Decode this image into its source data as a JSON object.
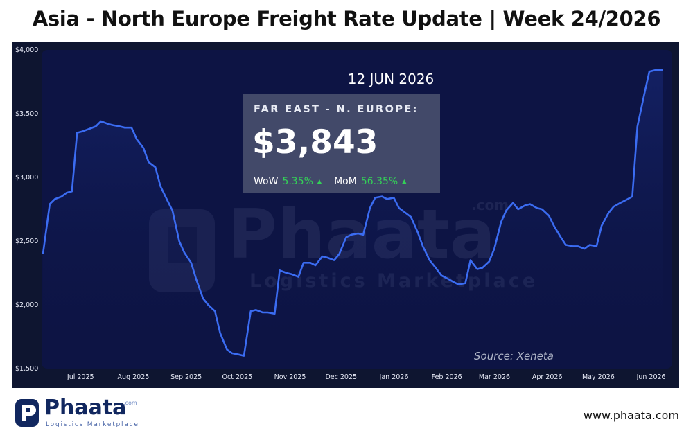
{
  "title": "Asia - North Europe Freight Rate Update | Week 24/2026",
  "date_label": "12 JUN 2026",
  "card": {
    "route": "FAR EAST - N. EUROPE:",
    "price": "$3,843",
    "wow_label": "WoW",
    "wow_value": "5.35%",
    "mom_label": "MoM",
    "mom_value": "56.35%",
    "trend_icon": "triangle-up-icon"
  },
  "source": "Source: Xeneta",
  "watermark": {
    "name": "Phaata",
    "com": ".com",
    "tagline": "Logistics Marketplace"
  },
  "footer": {
    "logo_name": "Phaata",
    "logo_com": ".com",
    "logo_tagline": "Logistics Marketplace",
    "website": "www.phaata.com"
  },
  "colors": {
    "line": "#3b6cf2",
    "plot_bg": "#0d1444",
    "panel_bg": "#0e1530",
    "positive": "#34d058"
  },
  "chart_data": {
    "type": "line",
    "title": "",
    "xlabel": "",
    "ylabel": "",
    "ylim": [
      1500,
      4000
    ],
    "yticks": [
      1500,
      2000,
      2500,
      3000,
      3500,
      4000
    ],
    "ytick_labels": [
      "$1,500",
      "$2,000",
      "$2,500",
      "$3,000",
      "$3,500",
      "$4,000"
    ],
    "xtick_labels": [
      "Jul 2025",
      "Aug 2025",
      "Sep 2025",
      "Oct 2025",
      "Nov 2025",
      "Dec 2025",
      "Jan 2026",
      "Feb 2026",
      "Mar 2026",
      "Apr 2026",
      "May 2026",
      "Jun 2026"
    ],
    "xtick_dates": [
      "2025-07-01",
      "2025-08-01",
      "2025-09-01",
      "2025-10-01",
      "2025-11-01",
      "2025-12-01",
      "2026-01-01",
      "2026-02-01",
      "2026-03-01",
      "2026-04-01",
      "2026-05-01",
      "2026-06-01"
    ],
    "grid": false,
    "legend": "none",
    "series": [
      {
        "x": [
          "2025-06-13",
          "2025-06-17",
          "2025-06-20",
          "2025-06-24",
          "2025-06-27",
          "2025-06-30",
          "2025-07-03",
          "2025-07-06",
          "2025-07-10",
          "2025-07-14",
          "2025-07-17",
          "2025-07-21",
          "2025-07-24",
          "2025-07-28",
          "2025-07-31",
          "2025-08-04",
          "2025-08-07",
          "2025-08-11",
          "2025-08-14",
          "2025-08-18",
          "2025-08-21",
          "2025-08-25",
          "2025-08-28",
          "2025-09-01",
          "2025-09-04",
          "2025-09-08",
          "2025-09-11",
          "2025-09-15",
          "2025-09-18",
          "2025-09-22",
          "2025-09-25",
          "2025-09-29",
          "2025-10-02",
          "2025-10-06",
          "2025-10-09",
          "2025-10-13",
          "2025-10-16",
          "2025-10-20",
          "2025-10-23",
          "2025-10-27",
          "2025-10-30",
          "2025-11-03",
          "2025-11-06",
          "2025-11-10",
          "2025-11-13",
          "2025-11-17",
          "2025-11-20",
          "2025-11-24",
          "2025-11-27",
          "2025-12-01",
          "2025-12-04",
          "2025-12-08",
          "2025-12-11",
          "2025-12-15",
          "2025-12-18",
          "2025-12-22",
          "2025-12-25",
          "2025-12-29",
          "2026-01-01",
          "2026-01-05",
          "2026-01-08",
          "2026-01-12",
          "2026-01-15",
          "2026-01-19",
          "2026-01-22",
          "2026-01-26",
          "2026-01-29",
          "2026-02-02",
          "2026-02-05",
          "2026-02-09",
          "2026-02-12",
          "2026-02-16",
          "2026-02-19",
          "2026-02-23",
          "2026-02-26",
          "2026-03-02",
          "2026-03-05",
          "2026-03-09",
          "2026-03-12",
          "2026-03-16",
          "2026-03-19",
          "2026-03-23",
          "2026-03-26",
          "2026-03-30",
          "2026-04-02",
          "2026-04-06",
          "2026-04-09",
          "2026-04-13",
          "2026-04-16",
          "2026-04-20",
          "2026-04-23",
          "2026-04-27",
          "2026-04-30",
          "2026-05-04",
          "2026-05-07",
          "2026-05-11",
          "2026-05-14",
          "2026-05-18",
          "2026-05-21",
          "2026-05-25",
          "2026-05-28",
          "2026-06-01",
          "2026-06-04",
          "2026-06-08",
          "2026-06-12"
        ],
        "values": [
          2400,
          2790,
          2830,
          2850,
          2880,
          2890,
          3350,
          3360,
          3380,
          3400,
          3440,
          3420,
          3410,
          3400,
          3390,
          3390,
          3300,
          3230,
          3120,
          3080,
          2930,
          2820,
          2740,
          2500,
          2410,
          2330,
          2200,
          2050,
          2000,
          1950,
          1780,
          1650,
          1620,
          1610,
          1600,
          1950,
          1960,
          1940,
          1940,
          1930,
          2270,
          2250,
          2240,
          2220,
          2330,
          2330,
          2310,
          2380,
          2370,
          2350,
          2400,
          2530,
          2550,
          2560,
          2550,
          2760,
          2840,
          2850,
          2830,
          2840,
          2760,
          2720,
          2690,
          2570,
          2460,
          2350,
          2300,
          2230,
          2210,
          2180,
          2160,
          2170,
          2350,
          2280,
          2290,
          2340,
          2440,
          2650,
          2740,
          2800,
          2750,
          2780,
          2790,
          2760,
          2750,
          2700,
          2620,
          2530,
          2470,
          2460,
          2460,
          2440,
          2470,
          2460,
          2620,
          2720,
          2770,
          2800,
          2820,
          2850,
          3400,
          3650,
          3830,
          3843,
          3843
        ]
      }
    ]
  }
}
